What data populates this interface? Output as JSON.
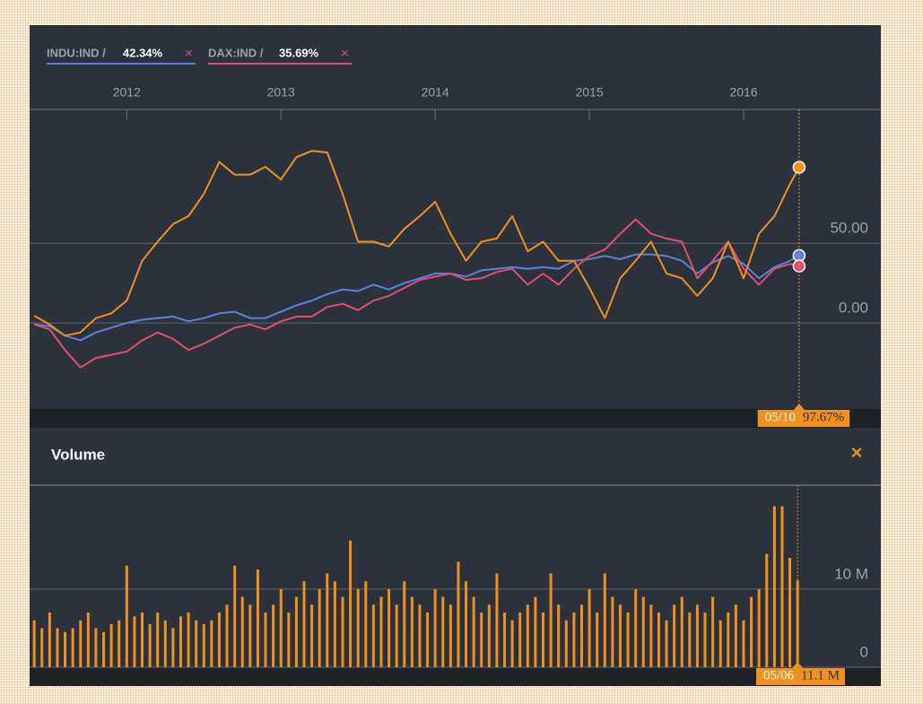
{
  "chart_data": [
    {
      "type": "line",
      "xlim": [
        2011.37,
        2016.89
      ],
      "xticks": [
        2012,
        2013,
        2014,
        2015,
        2016
      ],
      "ylim": [
        -54,
        134
      ],
      "yticks": [
        {
          "value": 0,
          "label": "0.00"
        },
        {
          "value": 50,
          "label": "50.00"
        }
      ],
      "grid": true,
      "crosshair": {
        "date": "05/10"
      },
      "x": [
        2011.4,
        2011.5,
        2011.6,
        2011.7,
        2011.8,
        2011.9,
        2012.0,
        2012.1,
        2012.2,
        2012.3,
        2012.4,
        2012.5,
        2012.6,
        2012.7,
        2012.8,
        2012.9,
        2013.0,
        2013.1,
        2013.2,
        2013.3,
        2013.4,
        2013.5,
        2013.6,
        2013.7,
        2013.8,
        2013.9,
        2014.0,
        2014.1,
        2014.2,
        2014.3,
        2014.4,
        2014.5,
        2014.6,
        2014.7,
        2014.8,
        2014.9,
        2015.0,
        2015.1,
        2015.2,
        2015.3,
        2015.4,
        2015.5,
        2015.6,
        2015.7,
        2015.8,
        2015.9,
        2016.0,
        2016.1,
        2016.2,
        2016.3,
        2016.36
      ],
      "series": [
        {
          "name": "INDU:IND /",
          "color": "#5b80e0",
          "value_label": "42.34%",
          "values": [
            -1,
            -2,
            -8,
            -11,
            -6,
            -3,
            0,
            2,
            3,
            4,
            1,
            3,
            6,
            7,
            3,
            3,
            7,
            11,
            14,
            18,
            21,
            20,
            24,
            21,
            25,
            28,
            31,
            31,
            29,
            33,
            34,
            35,
            34,
            35,
            34,
            39,
            40,
            42,
            40,
            43,
            43,
            42,
            39,
            31,
            38,
            42,
            37,
            28,
            35,
            39,
            42.34
          ]
        },
        {
          "name": "DAX:IND /",
          "color": "#e0506a",
          "value_label": "35.69%",
          "values": [
            -1,
            -4,
            -17,
            -28,
            -22,
            -20,
            -18,
            -11,
            -6,
            -10,
            -17,
            -13,
            -8,
            -3,
            -1,
            -4,
            1,
            4,
            4,
            10,
            12,
            8,
            14,
            17,
            22,
            27,
            29,
            31,
            27,
            28,
            32,
            34,
            24,
            31,
            24,
            34,
            42,
            46,
            56,
            65,
            56,
            53,
            51,
            28,
            39,
            51,
            34,
            24,
            34,
            37,
            35.69
          ]
        },
        {
          "color": "#f0901e",
          "value_label": "97.67%",
          "values": [
            4.5,
            -1,
            -8,
            -6,
            3,
            6,
            14,
            39,
            51,
            62,
            67,
            81,
            101,
            93,
            93,
            98,
            90,
            104,
            108,
            107,
            81,
            51,
            51,
            48,
            59,
            67,
            76,
            56,
            39,
            51,
            53,
            67,
            45,
            51,
            39,
            39,
            22,
            3,
            28,
            39,
            51,
            31,
            28,
            17,
            28,
            51,
            28,
            56,
            67,
            87,
            97.67
          ]
        }
      ]
    },
    {
      "type": "bar",
      "title": "Volume",
      "xlim": [
        2011.37,
        2016.89
      ],
      "ylim": [
        0,
        23.3
      ],
      "yticks": [
        0,
        {
          "value": 10,
          "label": "10 M"
        }
      ],
      "grid": true,
      "color": "#f0901e",
      "crosshair": {
        "date": "05/06"
      },
      "value_label": "11.1 M",
      "x": [
        2011.4,
        2011.45,
        2011.5,
        2011.55,
        2011.6,
        2011.65,
        2011.7,
        2011.75,
        2011.8,
        2011.85,
        2011.9,
        2011.95,
        2012.0,
        2012.05,
        2012.1,
        2012.15,
        2012.2,
        2012.25,
        2012.3,
        2012.35,
        2012.4,
        2012.45,
        2012.5,
        2012.55,
        2012.6,
        2012.65,
        2012.7,
        2012.75,
        2012.8,
        2012.85,
        2012.9,
        2012.95,
        2013.0,
        2013.05,
        2013.1,
        2013.15,
        2013.2,
        2013.25,
        2013.3,
        2013.35,
        2013.4,
        2013.45,
        2013.5,
        2013.55,
        2013.6,
        2013.65,
        2013.7,
        2013.75,
        2013.8,
        2013.85,
        2013.9,
        2013.95,
        2014.0,
        2014.05,
        2014.1,
        2014.15,
        2014.2,
        2014.25,
        2014.3,
        2014.35,
        2014.4,
        2014.45,
        2014.5,
        2014.55,
        2014.6,
        2014.65,
        2014.7,
        2014.75,
        2014.8,
        2014.85,
        2014.9,
        2014.95,
        2015.0,
        2015.05,
        2015.1,
        2015.15,
        2015.2,
        2015.25,
        2015.3,
        2015.35,
        2015.4,
        2015.45,
        2015.5,
        2015.55,
        2015.6,
        2015.65,
        2015.7,
        2015.75,
        2015.8,
        2015.85,
        2015.9,
        2015.95,
        2016.0,
        2016.05,
        2016.1,
        2016.15,
        2016.2,
        2016.25,
        2016.3,
        2016.35
      ],
      "values": [
        6,
        5,
        7,
        5,
        4.5,
        5,
        6,
        7,
        5,
        4.5,
        5.5,
        6,
        13,
        6.5,
        7,
        5.5,
        7,
        6,
        5,
        6.5,
        7,
        6,
        5.5,
        6,
        7,
        8,
        13,
        9,
        8,
        12.5,
        7,
        8,
        10,
        7,
        9,
        11,
        8,
        10,
        12,
        11,
        9,
        16.2,
        10,
        11,
        8,
        9,
        10,
        8,
        11,
        9,
        8,
        7,
        10,
        9,
        8,
        13.5,
        11,
        9,
        7,
        8,
        12,
        7,
        6,
        7,
        8,
        9,
        7,
        12,
        8,
        6,
        7,
        8,
        10,
        7,
        12,
        9,
        8,
        7,
        10,
        9,
        8,
        7,
        6,
        8,
        9,
        7,
        8,
        7,
        9,
        6,
        7,
        8,
        6,
        9,
        10,
        14.5,
        20.6,
        20.6,
        14,
        11.1
      ]
    }
  ]
}
